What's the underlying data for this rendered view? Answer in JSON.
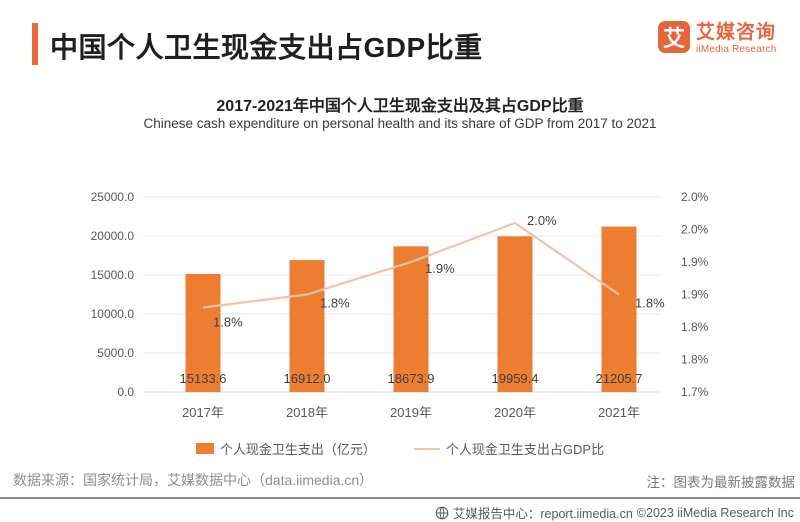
{
  "header": {
    "title": "中国个人卫生现金支出占GDP比重",
    "accent_color": "#EB6A3E"
  },
  "logo": {
    "mark_text": "艾",
    "name_cn": "艾媒咨询",
    "name_en": "iiMedia Research",
    "color": "#E5663C"
  },
  "chart_data": {
    "type": "bar+line combo",
    "title": "2017-2021年中国个人卫生现金支出及其占GDP比重",
    "subtitle": "Chinese cash expenditure on personal health and its share of GDP from 2017 to 2021",
    "categories": [
      "2017年",
      "2018年",
      "2019年",
      "2020年",
      "2021年"
    ],
    "series": [
      {
        "name": "个人现金卫生支出（亿元）",
        "type": "bar",
        "axis": "left",
        "color": "#ED7D31",
        "values": [
          15133.6,
          16912.0,
          18673.9,
          19959.4,
          21205.7
        ],
        "value_labels": [
          "15133.6",
          "16912.0",
          "18673.9",
          "19959.4",
          "21205.7"
        ]
      },
      {
        "name": "个人现金卫生支出占GDP比",
        "type": "line",
        "axis": "right",
        "color": "#F1C2A9",
        "values": [
          1.83,
          1.85,
          1.9,
          1.96,
          1.85
        ],
        "value_labels": [
          "1.8%",
          "1.8%",
          "1.9%",
          "2.0%",
          "1.8%"
        ]
      }
    ],
    "left_axis": {
      "min": 0,
      "max": 25000,
      "tick_labels_top_to_bottom": [
        "25000.0",
        "20000.0",
        "15000.0",
        "10000.0",
        "5000.0",
        "0.0"
      ]
    },
    "right_axis": {
      "min": 1.7,
      "max": 2.0,
      "tick_labels_top_to_bottom": [
        "2.0%",
        "2.0%",
        "1.9%",
        "1.9%",
        "1.8%",
        "1.8%",
        "1.7%"
      ]
    },
    "grid": "horizontal gridlines at left-axis ticks",
    "legend_position": "bottom center"
  },
  "footnotes": {
    "source": "数据来源：国家统计局，艾媒数据中心（data.iimedia.cn）",
    "note": "注：图表为最新披露数据"
  },
  "footer": {
    "icon": "globe-icon",
    "report_center": "艾媒报告中心：report.iimedia.cn",
    "copyright": "©2023 iiMedia Research Inc"
  }
}
